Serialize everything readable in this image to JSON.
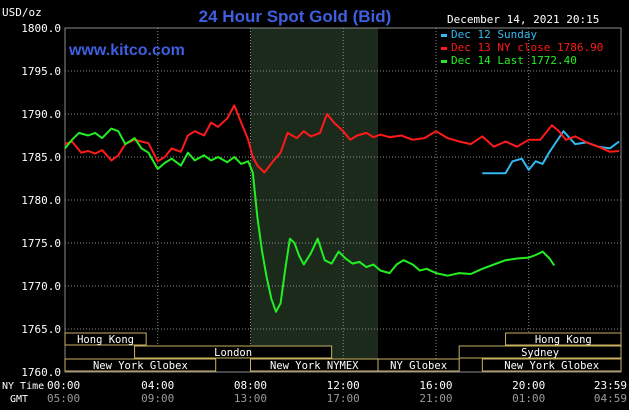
{
  "header": {
    "unit_label": "USD/oz",
    "title": "24 Hour Spot Gold (Bid)",
    "datetime": "December 14, 2021 20:15",
    "watermark": "www.kitco.com"
  },
  "colors": {
    "background": "#000000",
    "grid": "#8c8c8c",
    "title": "#3e5fe0",
    "watermark": "#3e5fe0",
    "text": "#ffffff",
    "highlight_band": "#1c2a1c",
    "market_fill": "#000000",
    "market_border": "#c8b060",
    "dec12": "#33b9ef",
    "dec13": "#ff1a1a",
    "dec14": "#22ee22"
  },
  "time_axis": {
    "ny_label": "NY Time",
    "gmt_label": "GMT",
    "ny_ticks": [
      "00:00",
      "04:00",
      "08:00",
      "12:00",
      "16:00",
      "20:00",
      "23:59"
    ],
    "gmt_ticks": [
      "05:00",
      "09:00",
      "13:00",
      "17:00",
      "21:00",
      "01:00",
      "04:59"
    ]
  },
  "markets": [
    {
      "label": "Hong Kong",
      "start": 0.0,
      "end": 3.5
    },
    {
      "label": "London",
      "start": 3.0,
      "end": 11.5
    },
    {
      "label": "New York Globex",
      "start": 0.0,
      "end": 6.5
    },
    {
      "label": "New York NYMEX",
      "start": 8.0,
      "end": 13.5
    },
    {
      "label": "NY Globex",
      "start": 13.5,
      "end": 17.0
    },
    {
      "label": "Hong Kong",
      "start": 19.0,
      "end": 23.98
    },
    {
      "label": "Sydney",
      "start": 17.0,
      "end": 23.98
    },
    {
      "label": "New York Globex",
      "start": 18.0,
      "end": 23.98
    }
  ],
  "chart_data": {
    "type": "line",
    "title": "24 Hour Spot Gold (Bid)",
    "ylabel": "USD/oz",
    "xlabel": "NY Time",
    "ylim": [
      1760,
      1800
    ],
    "xlim": [
      0,
      23.98
    ],
    "y_ticks": [
      1760.0,
      1765.0,
      1770.0,
      1775.0,
      1780.0,
      1785.0,
      1790.0,
      1795.0,
      1800.0
    ],
    "highlight_x": [
      8.0,
      13.5
    ],
    "legend_position": "top-right",
    "grid": true,
    "series": [
      {
        "name": "Dec 12 Sunday",
        "color": "#33b9ef",
        "x": [
          18.0,
          19.0,
          19.3,
          19.7,
          20.0,
          20.3,
          20.6,
          20.9,
          21.2,
          21.5,
          22.0,
          22.5,
          23.0,
          23.5,
          23.9
        ],
        "y": [
          1783.1,
          1783.1,
          1784.5,
          1784.8,
          1783.5,
          1784.5,
          1784.2,
          1785.6,
          1786.8,
          1788.0,
          1786.5,
          1786.7,
          1786.2,
          1786.0,
          1786.8
        ]
      },
      {
        "name": "Dec 13 NY close 1786.90",
        "color": "#ff1a1a",
        "x": [
          0.0,
          0.3,
          0.7,
          1.0,
          1.3,
          1.6,
          2.0,
          2.3,
          2.6,
          3.0,
          3.3,
          3.6,
          4.0,
          4.3,
          4.6,
          5.0,
          5.3,
          5.6,
          6.0,
          6.3,
          6.6,
          7.0,
          7.3,
          7.6,
          7.9,
          8.1,
          8.3,
          8.6,
          9.0,
          9.3,
          9.6,
          10.0,
          10.3,
          10.6,
          11.0,
          11.3,
          11.6,
          12.0,
          12.3,
          12.6,
          13.0,
          13.3,
          13.6,
          14.0,
          14.5,
          15.0,
          15.5,
          16.0,
          16.5,
          17.0,
          17.5,
          18.0,
          18.5,
          19.0,
          19.5,
          20.0,
          20.5,
          21.0,
          21.3,
          21.6,
          22.0,
          22.5,
          23.0,
          23.5,
          23.9
        ],
        "y": [
          1786.5,
          1786.8,
          1785.5,
          1785.7,
          1785.4,
          1785.8,
          1784.6,
          1785.2,
          1786.5,
          1787.0,
          1786.8,
          1786.6,
          1784.5,
          1785.0,
          1786.0,
          1785.6,
          1787.5,
          1788.0,
          1787.5,
          1789.0,
          1788.5,
          1789.5,
          1791.0,
          1789.0,
          1787.0,
          1785.0,
          1784.0,
          1783.2,
          1784.6,
          1785.5,
          1787.8,
          1787.2,
          1788.0,
          1787.4,
          1787.8,
          1790.0,
          1789.0,
          1788.0,
          1787.0,
          1787.5,
          1787.8,
          1787.3,
          1787.6,
          1787.3,
          1787.5,
          1787.0,
          1787.2,
          1788.0,
          1787.2,
          1786.8,
          1786.5,
          1787.4,
          1786.2,
          1786.8,
          1786.2,
          1787.0,
          1787.0,
          1788.7,
          1788.0,
          1787.0,
          1787.4,
          1786.7,
          1786.2,
          1785.6,
          1785.7
        ]
      },
      {
        "name": "Dec 14 Last 1772.40",
        "color": "#22ee22",
        "x": [
          0.0,
          0.3,
          0.6,
          1.0,
          1.3,
          1.6,
          2.0,
          2.3,
          2.6,
          3.0,
          3.3,
          3.6,
          4.0,
          4.3,
          4.6,
          5.0,
          5.3,
          5.6,
          6.0,
          6.3,
          6.6,
          7.0,
          7.3,
          7.6,
          7.9,
          8.1,
          8.3,
          8.5,
          8.7,
          8.9,
          9.1,
          9.3,
          9.5,
          9.7,
          9.9,
          10.1,
          10.3,
          10.6,
          10.9,
          11.2,
          11.5,
          11.8,
          12.1,
          12.4,
          12.7,
          13.0,
          13.3,
          13.6,
          14.0,
          14.3,
          14.6,
          15.0,
          15.3,
          15.6,
          16.0,
          16.5,
          17.0,
          17.5,
          18.0,
          18.5,
          19.0,
          19.5,
          20.0,
          20.3,
          20.6,
          20.9,
          21.1
        ],
        "y": [
          1786.0,
          1787.0,
          1787.8,
          1787.5,
          1787.8,
          1787.2,
          1788.3,
          1788.0,
          1786.5,
          1787.2,
          1786.0,
          1785.5,
          1783.6,
          1784.3,
          1784.8,
          1784.0,
          1785.5,
          1784.6,
          1785.2,
          1784.6,
          1785.0,
          1784.4,
          1785.0,
          1784.2,
          1784.5,
          1783.2,
          1778.0,
          1774.0,
          1771.0,
          1768.5,
          1767.0,
          1768.0,
          1772.0,
          1775.5,
          1775.0,
          1773.5,
          1772.5,
          1773.8,
          1775.5,
          1773.0,
          1772.6,
          1774.0,
          1773.2,
          1772.6,
          1772.8,
          1772.2,
          1772.5,
          1771.8,
          1771.5,
          1772.5,
          1773.0,
          1772.5,
          1771.8,
          1772.0,
          1771.5,
          1771.2,
          1771.5,
          1771.4,
          1772.0,
          1772.5,
          1773.0,
          1773.2,
          1773.3,
          1773.6,
          1774.0,
          1773.2,
          1772.4
        ]
      }
    ]
  }
}
